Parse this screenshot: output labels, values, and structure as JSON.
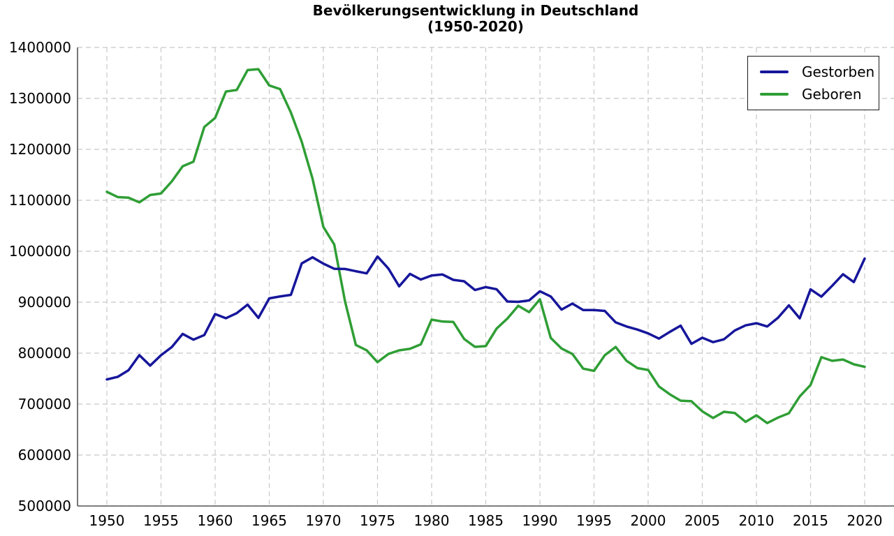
{
  "title": {
    "line1": "Bevölkerungsentwicklung in Deutschland",
    "line2": "(1950-2020)"
  },
  "legend": {
    "items": [
      {
        "label": "Gestorben",
        "color": "#16169B"
      },
      {
        "label": "Geboren",
        "color": "#2F9E35"
      }
    ]
  },
  "colors": {
    "grid": "#C8C8C8",
    "axis": "#555555",
    "text": "#000000",
    "background": "#FFFFFF"
  },
  "chart_data": {
    "type": "line",
    "title": "Bevölkerungsentwicklung in Deutschland (1950-2020)",
    "xlabel": "",
    "ylabel": "",
    "grid": true,
    "grid_style": "dashed",
    "legend_position": "top-right",
    "ylim": [
      500000,
      1400000
    ],
    "yticks": [
      500000,
      600000,
      700000,
      800000,
      900000,
      1000000,
      1100000,
      1200000,
      1300000,
      1400000
    ],
    "xticks": [
      1950,
      1955,
      1960,
      1965,
      1970,
      1975,
      1980,
      1985,
      1990,
      1995,
      2000,
      2005,
      2010,
      2015,
      2020
    ],
    "x": [
      1950,
      1951,
      1952,
      1953,
      1954,
      1955,
      1956,
      1957,
      1958,
      1959,
      1960,
      1961,
      1962,
      1963,
      1964,
      1965,
      1966,
      1967,
      1968,
      1969,
      1970,
      1971,
      1972,
      1973,
      1974,
      1975,
      1976,
      1977,
      1978,
      1979,
      1980,
      1981,
      1982,
      1983,
      1984,
      1985,
      1986,
      1987,
      1988,
      1989,
      1990,
      1991,
      1992,
      1993,
      1994,
      1995,
      1996,
      1997,
      1998,
      1999,
      2000,
      2001,
      2002,
      2003,
      2004,
      2005,
      2006,
      2007,
      2008,
      2009,
      2010,
      2011,
      2012,
      2013,
      2014,
      2015,
      2016,
      2017,
      2018,
      2019,
      2020
    ],
    "series": [
      {
        "name": "Gestorben",
        "color": "#16169B",
        "values": [
          748329,
          753497,
          766485,
          796081,
          775462,
          795930,
          811999,
          837698,
          826479,
          835517,
          876721,
          868563,
          878554,
          895210,
          869227,
          907523,
          911289,
          914417,
          976092,
          988087,
          975664,
          965623,
          965253,
          960805,
          956573,
          989649,
          966229,
          931155,
          955550,
          944474,
          952371,
          954434,
          943832,
          941095,
          923963,
          929649,
          925432,
          901291,
          900627,
          903441,
          921445,
          911245,
          885443,
          897270,
          884661,
          884588,
          882843,
          860389,
          852382,
          846330,
          838797,
          828541,
          841686,
          853946,
          818271,
          830227,
          821627,
          827155,
          844439,
          854544,
          858768,
          852328,
          869582,
          893825,
          868356,
          925200,
          910902,
          932263,
          954874,
          939520,
          985572
        ]
      },
      {
        "name": "Geboren",
        "color": "#2F9E35",
        "values": [
          1116701,
          1106380,
          1105085,
          1095994,
          1110400,
          1113408,
          1137169,
          1166786,
          1175870,
          1243922,
          1261614,
          1313505,
          1316534,
          1355595,
          1357304,
          1325386,
          1318303,
          1272276,
          1214968,
          1142366,
          1047737,
          1013396,
          901657,
          815969,
          805500,
          782310,
          798334,
          805496,
          808619,
          817217,
          865789,
          862100,
          861275,
          827933,
          812292,
          813803,
          848232,
          867969,
          892993,
          880459,
          905675,
          830019,
          809114,
          798447,
          769603,
          765221,
          796013,
          812173,
          785034,
          770744,
          766999,
          734475,
          719250,
          706721,
          705622,
          685795,
          672724,
          684862,
          682514,
          665126,
          677947,
          662685,
          673544,
          682069,
          714927,
          737575,
          792131,
          784901,
          787523,
          778090,
          773144
        ]
      }
    ]
  }
}
